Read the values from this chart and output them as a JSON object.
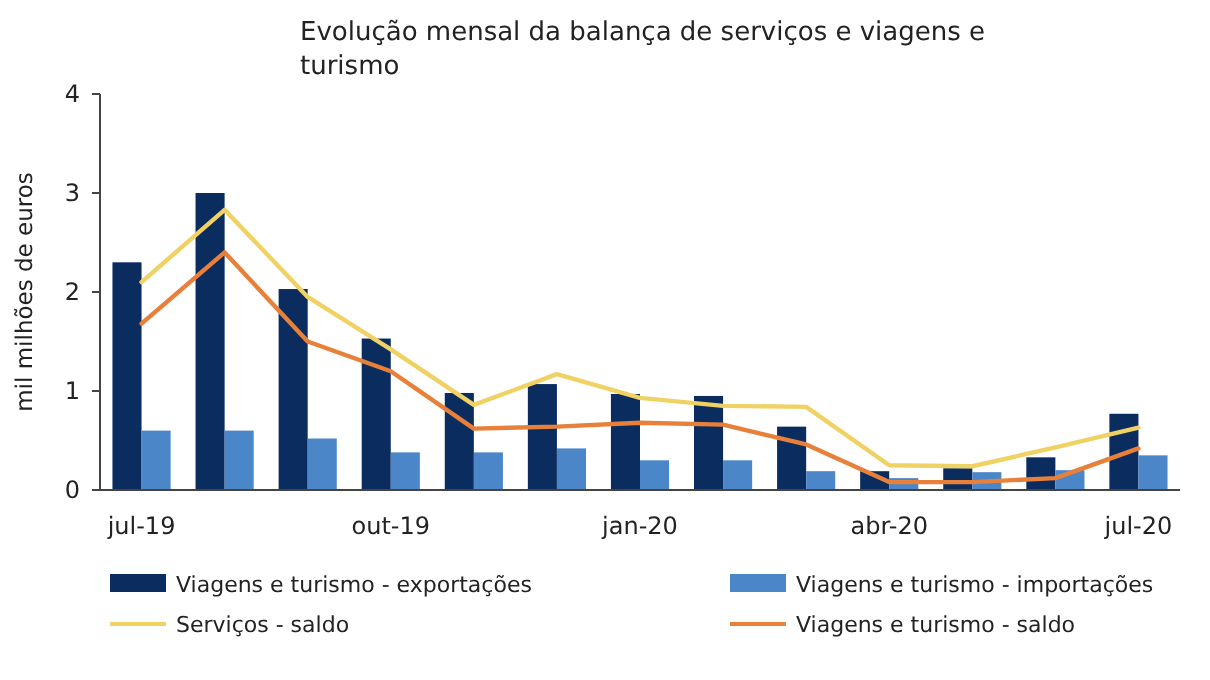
{
  "chart_data": {
    "type": "bar",
    "title": "Evolução mensal da balança de serviços e viagens e turismo",
    "ylabel": "mil milhões de euros",
    "categories": [
      "jul-19",
      null,
      null,
      "out-19",
      null,
      null,
      "jan-20",
      null,
      null,
      "abr-20",
      null,
      null,
      "jul-20"
    ],
    "ylim": [
      0,
      4
    ],
    "yticks": [
      0,
      1,
      2,
      3,
      4
    ],
    "grid": false,
    "legend": "bottom",
    "series": [
      {
        "name": "Viagens e turismo - exportações",
        "color": "#0b2c5f",
        "values": [
          2.3,
          3.0,
          2.03,
          1.53,
          0.98,
          1.07,
          0.97,
          0.95,
          0.64,
          0.19,
          0.22,
          0.33,
          0.77
        ]
      },
      {
        "name": "Viagens e turismo - importações",
        "color": "#4a86c8",
        "values": [
          0.6,
          0.6,
          0.52,
          0.38,
          0.38,
          0.42,
          0.3,
          0.3,
          0.19,
          0.12,
          0.18,
          0.2,
          0.35
        ]
      },
      {
        "name": "Serviços - saldo",
        "type": "line",
        "color": "#f0d264",
        "values": [
          2.1,
          2.83,
          1.95,
          1.42,
          0.86,
          1.17,
          0.93,
          0.85,
          0.84,
          0.25,
          0.24,
          0.43,
          0.63
        ]
      },
      {
        "name": "Viagens e turismo - saldo",
        "type": "line",
        "color": "#e8803a",
        "values": [
          1.68,
          2.4,
          1.5,
          1.2,
          0.62,
          0.64,
          0.68,
          0.66,
          0.46,
          0.08,
          0.08,
          0.12,
          0.42
        ]
      }
    ]
  }
}
